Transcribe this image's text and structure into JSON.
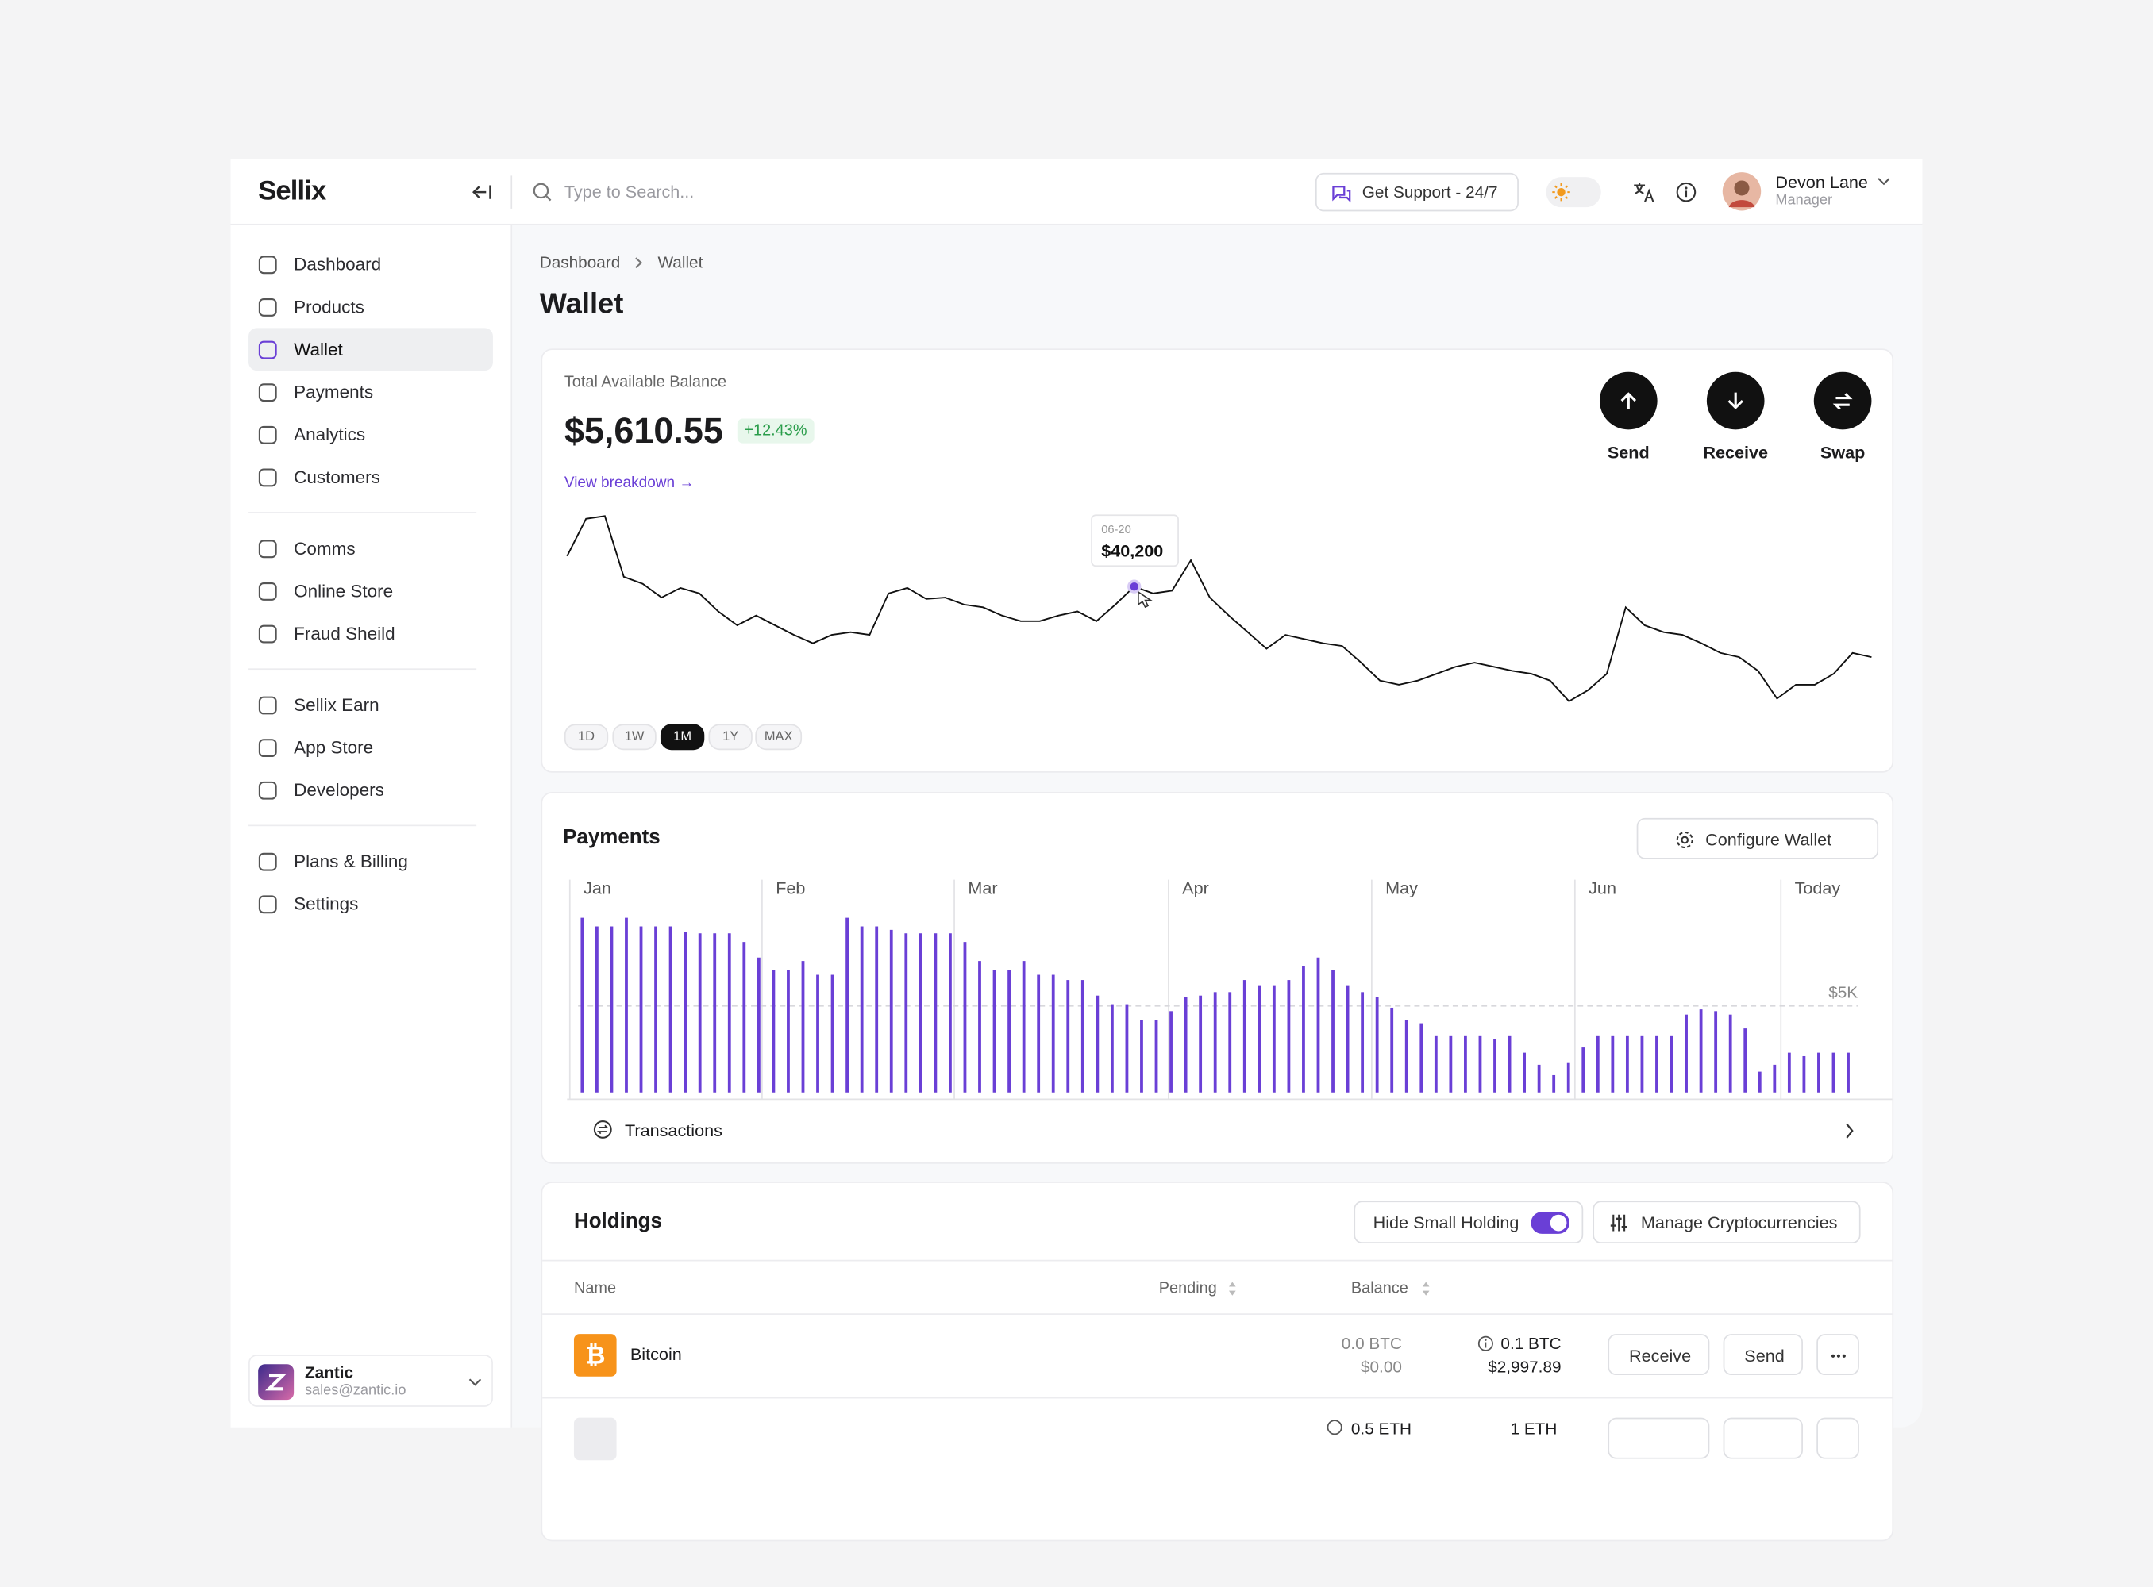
{
  "brand": "Sellix",
  "search_placeholder": "Type to Search...",
  "support": "Get Support - 24/7",
  "user": {
    "name": "Devon Lane",
    "role": "Manager"
  },
  "nav": [
    [
      "Dashboard",
      "Products",
      "Wallet",
      "Payments",
      "Analytics",
      "Customers"
    ],
    [
      "Comms",
      "Online Store",
      "Fraud Sheild"
    ],
    [
      "Sellix Earn",
      "App Store",
      "Developers"
    ],
    [
      "Plans & Billing",
      "Settings"
    ]
  ],
  "active_nav": "Wallet",
  "workspace": {
    "name": "Zantic",
    "email": "sales@zantic.io"
  },
  "breadcrumb": [
    "Dashboard",
    "Wallet"
  ],
  "page_title": "Wallet",
  "balance": {
    "label": "Total Available Balance",
    "amount": "$5,610.55",
    "change": "+12.43%",
    "link": "View breakdown →",
    "actions": [
      "Send",
      "Receive",
      "Swap"
    ],
    "ranges": [
      "1D",
      "1W",
      "1M",
      "1Y",
      "MAX"
    ],
    "active_range": "1M"
  },
  "chart_data": [
    {
      "type": "line",
      "color": "#111111",
      "values": [
        44600,
        50000,
        50400,
        41600,
        40600,
        38600,
        40000,
        39200,
        36600,
        34600,
        36000,
        34600,
        33200,
        32000,
        33200,
        33600,
        33200,
        39200,
        40000,
        38400,
        38600,
        37600,
        37200,
        36000,
        35200,
        35200,
        36000,
        36600,
        35200,
        37600,
        40200,
        39200,
        39600,
        44000,
        38600,
        36000,
        33600,
        31200,
        33200,
        32600,
        32000,
        31600,
        29200,
        26600,
        26000,
        26600,
        27600,
        28600,
        29200,
        28600,
        28000,
        27600,
        26600,
        23600,
        25200,
        27600,
        37200,
        34600,
        33600,
        33200,
        32000,
        30600,
        30000,
        28000,
        24000,
        26000,
        26000,
        27600,
        30600,
        30000
      ],
      "tooltip": {
        "x": "06-20",
        "value": 40200,
        "value_label": "$40,200"
      }
    },
    {
      "type": "bar",
      "title": "Payments",
      "color": "#6a3fd6",
      "months": [
        "Jan",
        "Feb",
        "Mar",
        "Apr",
        "May",
        "Jun",
        "Today"
      ],
      "values": [
        10100,
        9600,
        9600,
        10100,
        9600,
        9600,
        9600,
        9300,
        9200,
        9200,
        9200,
        8700,
        7800,
        7100,
        7100,
        7600,
        6800,
        6800,
        10100,
        9600,
        9600,
        9400,
        9200,
        9200,
        9200,
        9200,
        8700,
        7600,
        7100,
        7100,
        7600,
        6800,
        6800,
        6500,
        6500,
        5600,
        5100,
        5100,
        4200,
        4200,
        4700,
        5500,
        5600,
        5800,
        5800,
        6500,
        6200,
        6200,
        6500,
        7300,
        7800,
        7100,
        6200,
        5800,
        5500,
        4900,
        4200,
        4000,
        3300,
        3300,
        3300,
        3300,
        3100,
        3300,
        2300,
        1600,
        1000,
        1700,
        2600,
        3300,
        3300,
        3300,
        3300,
        3300,
        3300,
        4500,
        4800,
        4700,
        4500,
        3700,
        1200,
        1600,
        2300,
        2100,
        2300,
        2300,
        2300
      ],
      "ylim": [
        0,
        12300
      ],
      "yticks": [
        {
          "value": 5000,
          "label": "$5K"
        }
      ]
    }
  ],
  "payments": {
    "configure": "Configure Wallet",
    "transactions": "Transactions"
  },
  "holdings": {
    "title": "Holdings",
    "hide_small": "Hide Small Holding",
    "manage": "Manage Cryptocurrencies",
    "columns": [
      "Name",
      "Pending",
      "Balance"
    ],
    "rows": [
      {
        "name": "Bitcoin",
        "pending": [
          "0.0 BTC",
          "$0.00"
        ],
        "balance": [
          "0.1 BTC",
          "$2,997.89"
        ],
        "actions": [
          "Receive",
          "Send"
        ]
      },
      {
        "pending": [
          "0.5 ETH"
        ],
        "balance": [
          "1 ETH"
        ]
      }
    ]
  }
}
